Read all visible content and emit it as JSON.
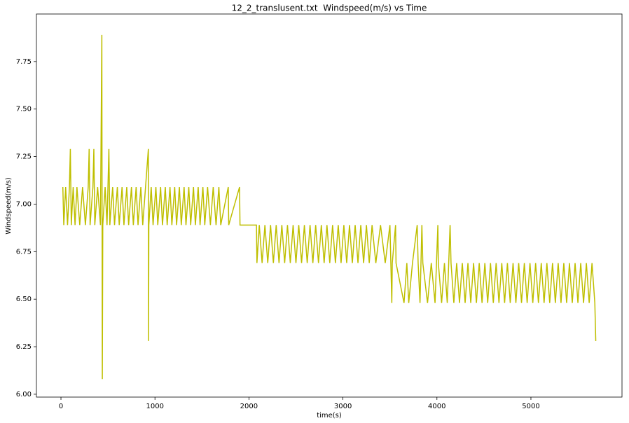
{
  "chart_data": {
    "type": "line",
    "title": "12_2_translusent.txt  Windspeed(m/s) vs Time",
    "xlabel": "time(s)",
    "ylabel": "Windspeed(m/s)",
    "color": "#bfbf00",
    "xlim": [
      -261,
      5969
    ],
    "xticks": [
      0,
      1000,
      2000,
      3000,
      4000,
      5000
    ],
    "ylim": [
      5.985,
      8.0
    ],
    "yticks": [
      {
        "value": 6,
        "label": "6.00"
      },
      6.25,
      {
        "value": 6.5,
        "label": "6.50"
      },
      6.75,
      {
        "value": 7,
        "label": "7.00"
      },
      7.25,
      {
        "value": 7.5,
        "label": "7.50"
      },
      7.75
    ],
    "x": [
      20,
      30,
      50,
      70,
      90,
      100,
      110,
      130,
      150,
      170,
      200,
      230,
      260,
      290,
      300,
      310,
      340,
      350,
      360,
      390,
      420,
      435,
      440,
      445,
      470,
      490,
      510,
      520,
      550,
      570,
      600,
      620,
      650,
      670,
      700,
      720,
      750,
      770,
      800,
      820,
      850,
      870,
      900,
      930,
      932,
      935,
      960,
      980,
      1010,
      1030,
      1060,
      1080,
      1110,
      1130,
      1160,
      1180,
      1210,
      1230,
      1260,
      1280,
      1310,
      1330,
      1360,
      1380,
      1410,
      1430,
      1460,
      1480,
      1510,
      1530,
      1560,
      1590,
      1620,
      1650,
      1680,
      1700,
      1780,
      1785,
      1900,
      1905,
      2080,
      2085,
      2110,
      2140,
      2170,
      2200,
      2230,
      2260,
      2290,
      2320,
      2350,
      2380,
      2410,
      2440,
      2470,
      2500,
      2530,
      2560,
      2590,
      2620,
      2650,
      2680,
      2710,
      2740,
      2770,
      2800,
      2830,
      2860,
      2890,
      2920,
      2950,
      2980,
      3010,
      3040,
      3070,
      3100,
      3130,
      3160,
      3190,
      3220,
      3250,
      3280,
      3310,
      3350,
      3400,
      3450,
      3500,
      3520,
      3525,
      3560,
      3565,
      3650,
      3680,
      3700,
      3740,
      3790,
      3800,
      3820,
      3840,
      3850,
      3900,
      3940,
      3980,
      4010,
      4015,
      4050,
      4080,
      4110,
      4140,
      4150,
      4180,
      4210,
      4240,
      4270,
      4300,
      4330,
      4360,
      4390,
      4420,
      4450,
      4480,
      4510,
      4540,
      4570,
      4600,
      4630,
      4660,
      4690,
      4720,
      4750,
      4780,
      4810,
      4840,
      4870,
      4900,
      4930,
      4960,
      4990,
      5020,
      5050,
      5080,
      5110,
      5140,
      5170,
      5200,
      5230,
      5260,
      5290,
      5320,
      5350,
      5380,
      5410,
      5440,
      5470,
      5500,
      5530,
      5560,
      5590,
      5620,
      5650,
      5680,
      5690
    ],
    "values": [
      7.09,
      6.89,
      7.09,
      6.89,
      7.09,
      7.29,
      6.89,
      7.09,
      6.89,
      7.09,
      6.89,
      7.09,
      6.89,
      7.09,
      7.29,
      6.89,
      7.09,
      7.29,
      6.89,
      7.09,
      6.89,
      7.89,
      6.08,
      6.89,
      7.09,
      6.89,
      7.29,
      6.89,
      7.09,
      6.89,
      7.09,
      6.89,
      7.09,
      6.89,
      7.09,
      6.89,
      7.09,
      6.89,
      7.09,
      6.89,
      7.09,
      6.89,
      7.09,
      7.29,
      6.28,
      6.89,
      7.09,
      6.89,
      7.09,
      6.89,
      7.09,
      6.89,
      7.09,
      6.89,
      7.09,
      6.89,
      7.09,
      6.89,
      7.09,
      6.89,
      7.09,
      6.89,
      7.09,
      6.89,
      7.09,
      6.89,
      7.09,
      6.89,
      7.09,
      6.89,
      7.09,
      6.89,
      7.09,
      6.89,
      7.09,
      6.89,
      7.09,
      6.89,
      7.09,
      6.89,
      6.89,
      6.69,
      6.89,
      6.69,
      6.89,
      6.69,
      6.89,
      6.69,
      6.89,
      6.69,
      6.89,
      6.69,
      6.89,
      6.69,
      6.89,
      6.69,
      6.89,
      6.69,
      6.89,
      6.69,
      6.89,
      6.69,
      6.89,
      6.69,
      6.89,
      6.69,
      6.89,
      6.69,
      6.89,
      6.69,
      6.89,
      6.69,
      6.89,
      6.69,
      6.89,
      6.69,
      6.89,
      6.69,
      6.89,
      6.69,
      6.89,
      6.69,
      6.89,
      6.69,
      6.89,
      6.69,
      6.89,
      6.48,
      6.69,
      6.89,
      6.69,
      6.48,
      6.69,
      6.48,
      6.69,
      6.89,
      6.69,
      6.48,
      6.89,
      6.69,
      6.48,
      6.69,
      6.48,
      6.89,
      6.69,
      6.48,
      6.69,
      6.48,
      6.89,
      6.69,
      6.48,
      6.69,
      6.48,
      6.69,
      6.48,
      6.69,
      6.48,
      6.69,
      6.48,
      6.69,
      6.48,
      6.69,
      6.48,
      6.69,
      6.48,
      6.69,
      6.48,
      6.69,
      6.48,
      6.69,
      6.48,
      6.69,
      6.48,
      6.69,
      6.48,
      6.69,
      6.48,
      6.69,
      6.48,
      6.69,
      6.48,
      6.69,
      6.48,
      6.69,
      6.48,
      6.69,
      6.48,
      6.69,
      6.48,
      6.69,
      6.48,
      6.69,
      6.48,
      6.69,
      6.48,
      6.69,
      6.48,
      6.69,
      6.48,
      6.69,
      6.48,
      6.28
    ]
  }
}
